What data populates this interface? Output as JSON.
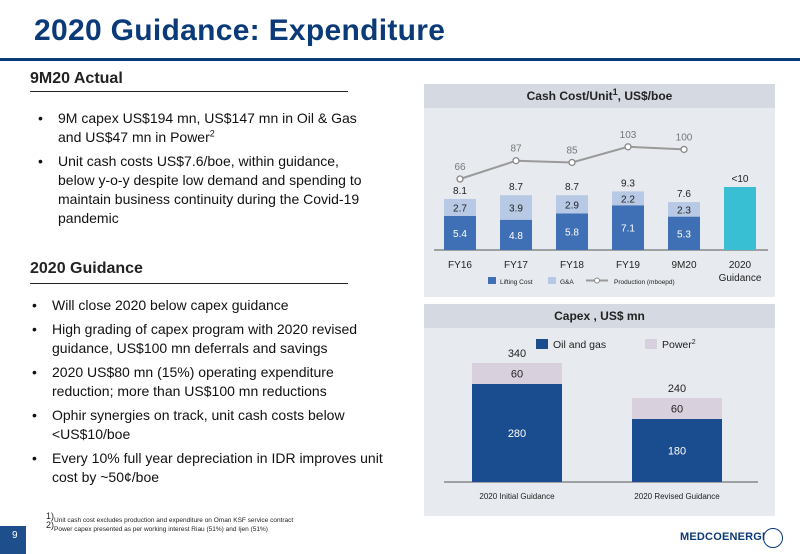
{
  "title": "2020 Guidance: Expenditure",
  "left": {
    "actual_heading": "9M20 Actual",
    "actual_bullets": [
      {
        "text": "9M capex US$194 mn, US$147 mn in Oil & Gas and US$47 mn in Power",
        "sup": "2"
      },
      {
        "text": "Unit cash costs US$7.6/boe, within guidance, below y-o-y despite low demand and spending to maintain business continuity during the Covid-19 pandemic",
        "sup": ""
      }
    ],
    "guidance_heading": "2020 Guidance",
    "guidance_bullets": [
      "Will close 2020 below capex guidance",
      "High grading of capex program with 2020 revised guidance, US$100 mn deferrals and savings",
      "2020 US$80 mn (15%) operating expenditure reduction;  more than US$100 mn reductions",
      "Ophir synergies on track, unit cash costs below <US$10/boe",
      "Every 10% full year depreciation in IDR improves unit cost by ~50¢/boe"
    ]
  },
  "footnotes": [
    {
      "sup": "1)",
      "text": "Unit cash cost excludes production and expenditure on  Oman KSF service contract"
    },
    {
      "sup": "2)",
      "text": "Power capex presented as per working interest Riau (51%) and Ijen (51%)"
    }
  ],
  "page_number": "9",
  "logo_text": "MEDCOENERGI",
  "colors": {
    "title": "#0b3a78",
    "lifting": "#3f6fb5",
    "ga": "#b7c9e4",
    "guidance": "#38bfd4",
    "oil": "#1a4d8f",
    "power": "#d9d0de"
  },
  "chart_data": [
    {
      "type": "bar",
      "title": "Cash Cost/Unit",
      "title_sup": "1",
      "title_suffix": ", US$/boe",
      "categories": [
        "FY16",
        "FY17",
        "FY18",
        "FY19",
        "9M20",
        "2020 Guidance"
      ],
      "series": [
        {
          "name": "Lifting Cost",
          "values": [
            5.4,
            4.8,
            5.8,
            7.1,
            5.3,
            null
          ]
        },
        {
          "name": "G&A",
          "values": [
            2.7,
            3.9,
            2.9,
            2.2,
            2.3,
            null
          ]
        },
        {
          "name": "Production (mboepd)",
          "type": "line",
          "values": [
            66,
            87,
            85,
            103,
            100,
            null
          ]
        }
      ],
      "totals": [
        "8.1",
        "8.7",
        "8.7",
        "9.3",
        "7.6",
        "<10"
      ],
      "guidance_value": 10,
      "stacked": true
    },
    {
      "type": "bar",
      "title": "Capex , US$ mn",
      "categories": [
        "2020 Initial Guidance",
        "2020 Revised Guidance"
      ],
      "series": [
        {
          "name": "Oil and gas",
          "values": [
            280,
            180
          ]
        },
        {
          "name": "Power",
          "legend_sup": "2",
          "values": [
            60,
            60
          ]
        }
      ],
      "totals": [
        340,
        240
      ],
      "stacked": true
    }
  ]
}
